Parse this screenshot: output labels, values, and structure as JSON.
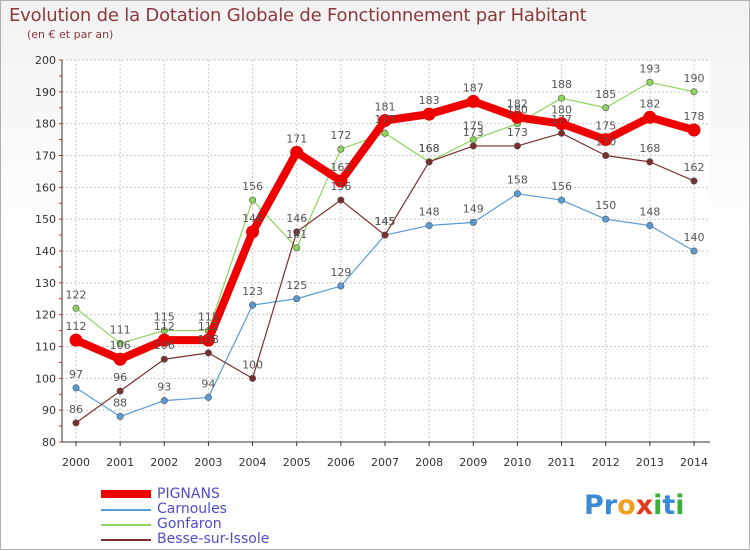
{
  "header": {
    "title": "Evolution de la Dotation Globale de Fonctionnement par Habitant",
    "subtitle": "(en € et par an)"
  },
  "logo": {
    "letters": [
      "P",
      "r",
      "o",
      "x",
      "i",
      "t",
      "i"
    ],
    "colors": [
      "#3a8ad6",
      "#3a8ad6",
      "#f0a020",
      "#e03a1e",
      "#3ab03a",
      "#3a8ad6",
      "#3ab03a"
    ]
  },
  "chart_data": {
    "type": "line",
    "title": "Evolution de la Dotation Globale de Fonctionnement par Habitant",
    "subtitle": "(en € et par an)",
    "x": [
      2000,
      2001,
      2002,
      2003,
      2004,
      2005,
      2006,
      2007,
      2008,
      2009,
      2010,
      2011,
      2012,
      2013,
      2014
    ],
    "ylim": [
      80,
      200
    ],
    "yticks": [
      80,
      90,
      100,
      110,
      120,
      130,
      140,
      150,
      160,
      170,
      180,
      190,
      200
    ],
    "grid": true,
    "legend_position": "bottom-left",
    "series": [
      {
        "name": "PIGNANS",
        "color": "#ee0000",
        "values": [
          112,
          106,
          112,
          112,
          146,
          171,
          162,
          181,
          183,
          187,
          182,
          180,
          175,
          182,
          178
        ],
        "labels": [
          "112",
          "106",
          "112",
          "112",
          "146",
          "171",
          "162",
          "181",
          "183",
          "187",
          "182",
          "180",
          "175",
          "182",
          "178"
        ]
      },
      {
        "name": "Carnoules",
        "color": "#5b9bd5",
        "values": [
          97,
          88,
          93,
          94,
          123,
          125,
          129,
          145,
          148,
          149,
          158,
          156,
          150,
          148,
          140
        ],
        "labels": [
          "97",
          "88",
          "93",
          "94",
          "123",
          "125",
          "129",
          "145",
          "148",
          "149",
          "158",
          "156",
          "150",
          "148",
          "140"
        ]
      },
      {
        "name": "Gonfaron",
        "color": "#8ed45c",
        "values": [
          122,
          111,
          115,
          115,
          156,
          141,
          172,
          177,
          168,
          175,
          180,
          188,
          185,
          193,
          190
        ],
        "labels": [
          "122",
          "111",
          "115",
          "115",
          "156",
          "141",
          "172",
          "177",
          "168",
          "175",
          "180",
          "188",
          "185",
          "193",
          "190"
        ]
      },
      {
        "name": "Besse-sur-Issole",
        "color": "#7a2e2e",
        "values": [
          86,
          96,
          106,
          108,
          100,
          146,
          156,
          145,
          168,
          173,
          173,
          177,
          170,
          168,
          162
        ],
        "labels": [
          "86",
          "96",
          "106",
          "108",
          "100",
          "146",
          "156",
          "145",
          "168",
          "173",
          "173",
          "177",
          "170",
          "168",
          "162"
        ]
      }
    ]
  }
}
